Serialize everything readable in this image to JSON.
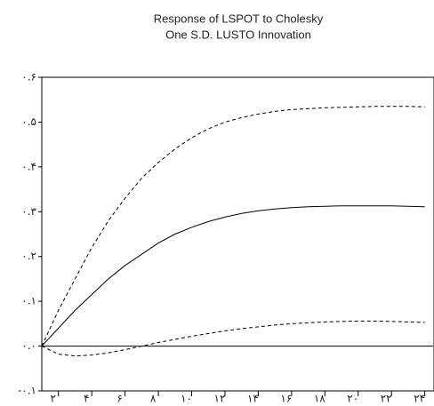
{
  "chart_data": {
    "type": "line",
    "title": [
      "Response of LSPOT to Cholesky",
      "One S.D. LUSTO Innovation"
    ],
    "x": [
      1,
      2,
      3,
      4,
      5,
      6,
      7,
      8,
      9,
      10,
      11,
      12,
      13,
      14,
      15,
      16,
      17,
      18,
      19,
      20,
      21,
      22,
      23,
      24
    ],
    "series": [
      {
        "color": "#000000",
        "dashed": false,
        "values": [
          0,
          0.04,
          0.08,
          0.115,
          0.15,
          0.18,
          0.205,
          0.23,
          0.25,
          0.265,
          0.278,
          0.288,
          0.296,
          0.302,
          0.306,
          0.309,
          0.311,
          0.312,
          0.313,
          0.313,
          0.313,
          0.313,
          0.312,
          0.311
        ]
      },
      {
        "color": "#000000",
        "dashed": true,
        "values": [
          0,
          0.08,
          0.15,
          0.22,
          0.28,
          0.33,
          0.375,
          0.41,
          0.44,
          0.465,
          0.485,
          0.5,
          0.51,
          0.518,
          0.524,
          0.528,
          0.53,
          0.532,
          0.533,
          0.534,
          0.535,
          0.535,
          0.535,
          0.534
        ]
      },
      {
        "color": "#000000",
        "dashed": true,
        "values": [
          0,
          -0.018,
          -0.022,
          -0.02,
          -0.015,
          -0.008,
          0,
          0.008,
          0.015,
          0.022,
          0.028,
          0.034,
          0.039,
          0.043,
          0.047,
          0.05,
          0.052,
          0.054,
          0.055,
          0.056,
          0.056,
          0.055,
          0.054,
          0.053
        ]
      }
    ],
    "reference_line": 0,
    "xlim": [
      1,
      24.5
    ],
    "ylim": [
      -0.1,
      0.6
    ],
    "xticks": [
      {
        "value": 2,
        "label": "۲"
      },
      {
        "value": 4,
        "label": "۴"
      },
      {
        "value": 6,
        "label": "۶"
      },
      {
        "value": 8,
        "label": "۸"
      },
      {
        "value": 10,
        "label": "۱۰"
      },
      {
        "value": 12,
        "label": "۱۲"
      },
      {
        "value": 14,
        "label": "۱۴"
      },
      {
        "value": 16,
        "label": "۱۶"
      },
      {
        "value": 18,
        "label": "۱۸"
      },
      {
        "value": 20,
        "label": "۲۰"
      },
      {
        "value": 22,
        "label": "۲۲"
      },
      {
        "value": 24,
        "label": "۲۴"
      }
    ],
    "yticks": [
      {
        "value": -0.1,
        "label": "-۰.۱"
      },
      {
        "value": 0,
        "label": "۰.۰"
      },
      {
        "value": 0.1,
        "label": "۰.۱"
      },
      {
        "value": 0.2,
        "label": "۰.۲"
      },
      {
        "value": 0.3,
        "label": "۰.۳"
      },
      {
        "value": 0.4,
        "label": "۰.۴"
      },
      {
        "value": 0.5,
        "label": "۰.۵"
      },
      {
        "value": 0.6,
        "label": "۰.۶"
      }
    ]
  }
}
